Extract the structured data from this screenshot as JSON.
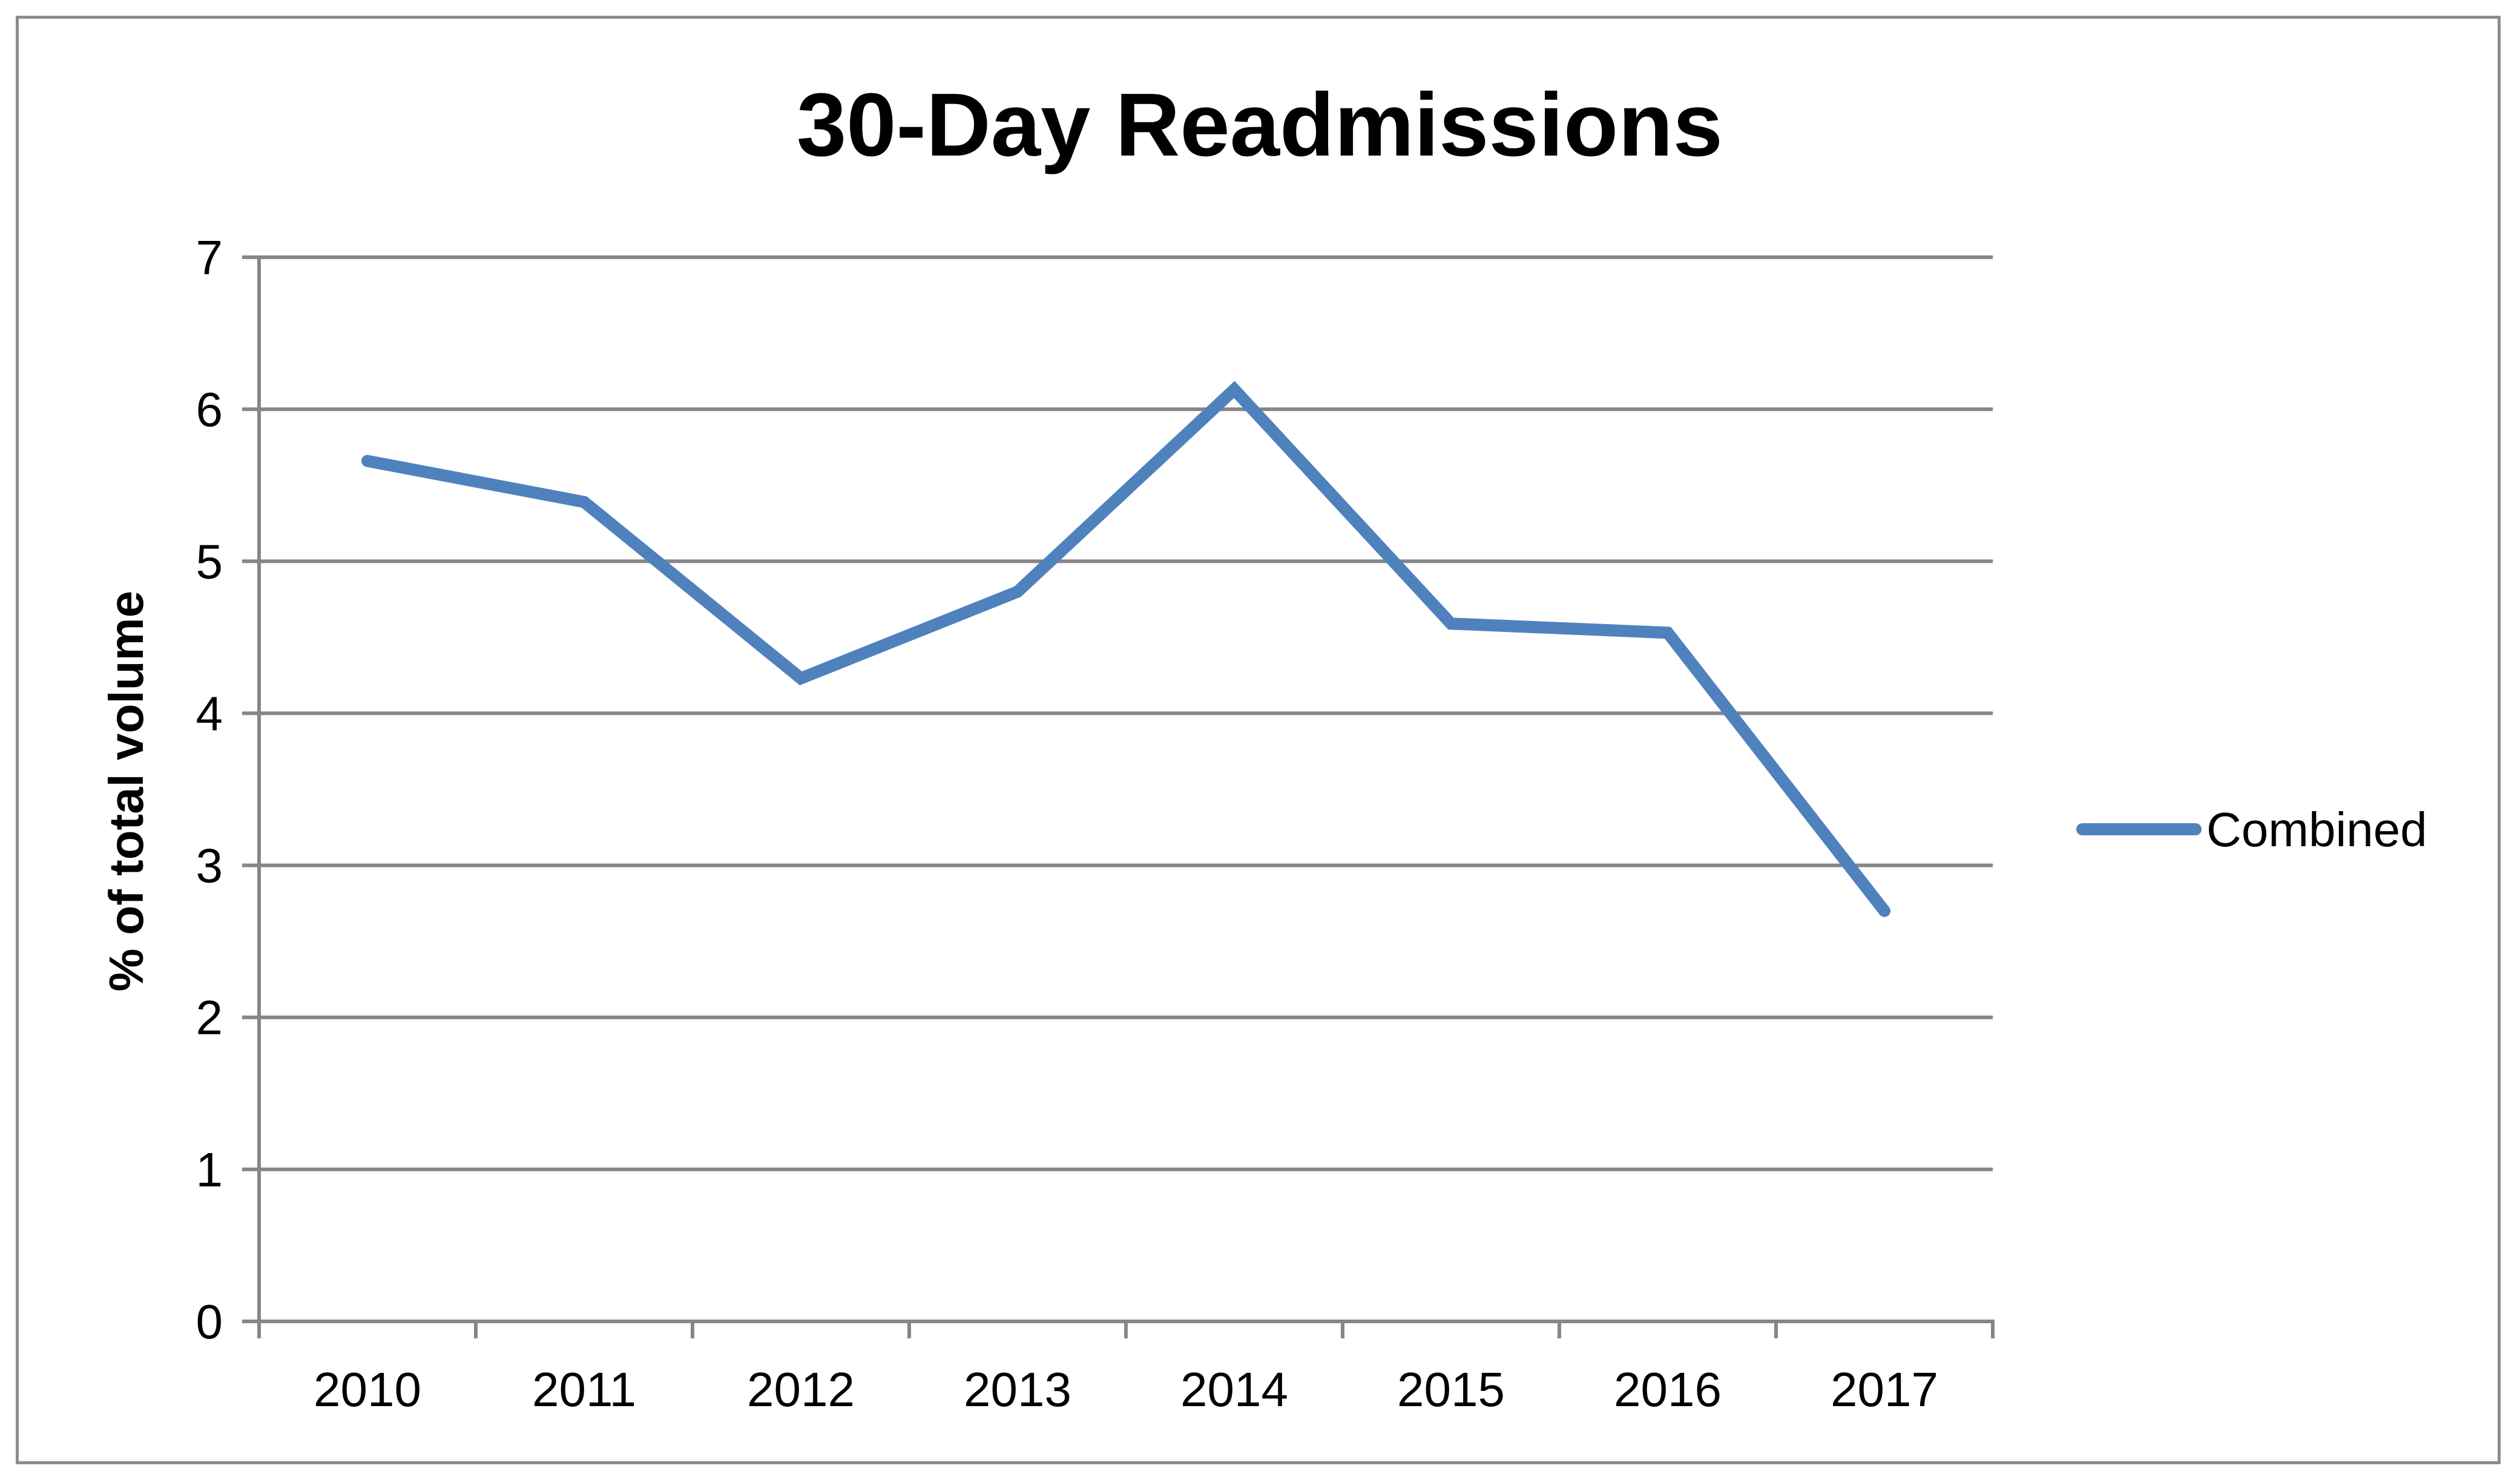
{
  "chart_data": {
    "type": "line",
    "title": "30-Day Readmissions",
    "xlabel": "",
    "ylabel": "% of total volume",
    "categories": [
      "2010",
      "2011",
      "2012",
      "2013",
      "2014",
      "2015",
      "2016",
      "2017"
    ],
    "series": [
      {
        "name": "Combined",
        "color": "#4f81bd",
        "values": [
          5.66,
          5.39,
          4.23,
          4.8,
          6.13,
          4.59,
          4.53,
          2.7
        ]
      }
    ],
    "ylim": [
      0,
      7
    ],
    "yticks": [
      "0",
      "1",
      "2",
      "3",
      "4",
      "5",
      "6",
      "7"
    ],
    "grid": true,
    "legend_position": "right"
  }
}
